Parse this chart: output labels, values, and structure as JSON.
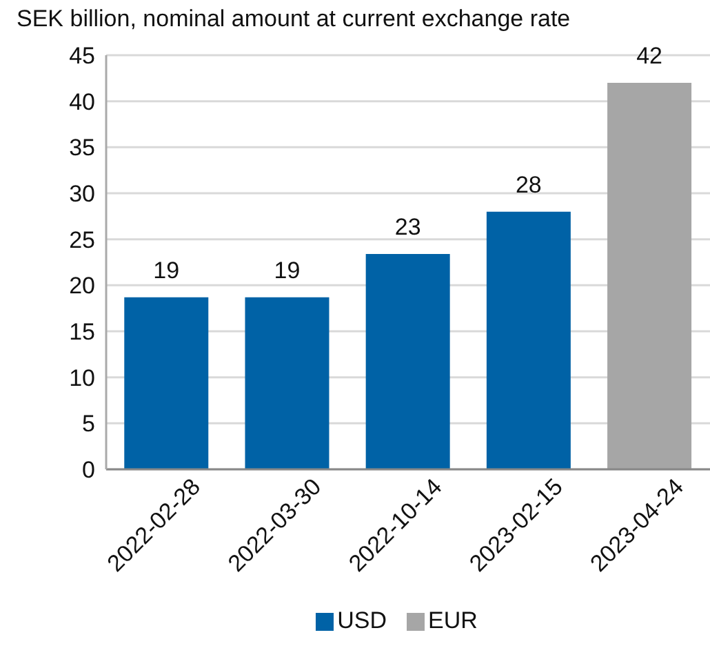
{
  "chart_data": {
    "type": "bar",
    "title": "SEK billion, nominal amount at current exchange rate",
    "categories": [
      "2022-02-28",
      "2022-03-30",
      "2022-10-14",
      "2023-02-15",
      "2023-04-24"
    ],
    "series": [
      {
        "name": "USD",
        "color": "#0062a6",
        "values": [
          18.7,
          18.7,
          23.4,
          28.0,
          null
        ],
        "value_labels": [
          "19",
          "19",
          "23",
          "28",
          null
        ]
      },
      {
        "name": "EUR",
        "color": "#a6a6a6",
        "values": [
          null,
          null,
          null,
          null,
          42.0
        ],
        "value_labels": [
          null,
          null,
          null,
          null,
          "42"
        ]
      }
    ],
    "stacked": true,
    "ylim": [
      0,
      45
    ],
    "yticks": [
      0,
      5,
      10,
      15,
      20,
      25,
      30,
      35,
      40,
      45
    ],
    "grid": "y",
    "legend": "bottom"
  }
}
